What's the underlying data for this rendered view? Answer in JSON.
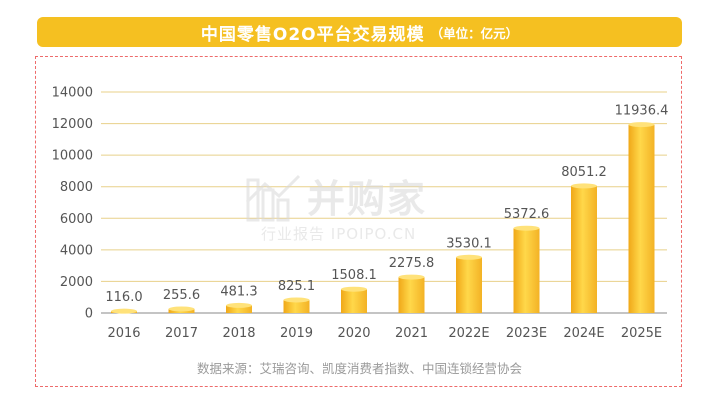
{
  "title": "中国零售O2O平台交易规模",
  "unit": "（单位：亿元）",
  "source": "数据来源：艾瑞咨询、凯度消费者指数、中国连锁经营协会",
  "watermark": {
    "main": "并购家",
    "sub": "行业报告 IPOIPO.CN"
  },
  "colors": {
    "accent": "#f5c021",
    "bar_light": "#ffd84a",
    "bar_dark": "#f0a818",
    "border": "#ee6b6b"
  },
  "chart_data": {
    "type": "bar",
    "categories": [
      "2016",
      "2017",
      "2018",
      "2019",
      "2020",
      "2021",
      "2022E",
      "2023E",
      "2024E",
      "2025E"
    ],
    "values": [
      116.0,
      255.6,
      481.3,
      825.1,
      1508.1,
      2275.8,
      3530.1,
      5372.6,
      8051.2,
      11936.4
    ],
    "value_labels": [
      "116.0",
      "255.6",
      "481.3",
      "825.1",
      "1508.1",
      "2275.8",
      "3530.1",
      "5372.6",
      "8051.2",
      "11936.4"
    ],
    "yticks": [
      0,
      2000,
      4000,
      6000,
      8000,
      10000,
      12000,
      14000
    ],
    "ylim": [
      0,
      14000
    ],
    "grid": true
  }
}
